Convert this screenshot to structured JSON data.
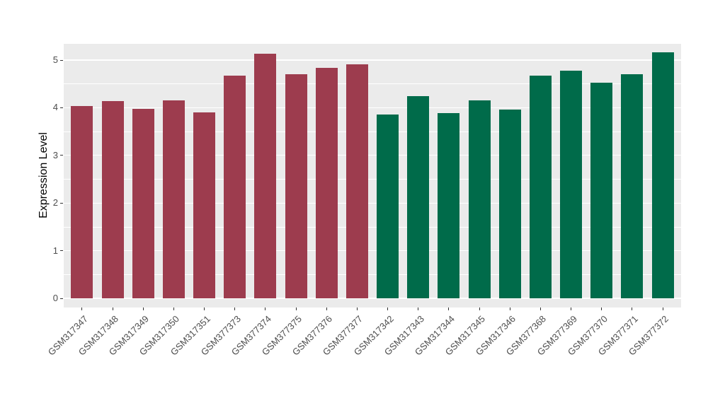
{
  "chart_data": {
    "type": "bar",
    "title": "",
    "xlabel": "",
    "ylabel": "Expression Level",
    "ylim": [
      0,
      5.35
    ],
    "yticks": [
      0,
      1,
      2,
      3,
      4,
      5
    ],
    "grid": "on",
    "legend": "none",
    "panel_bg": "#EBEBEB",
    "grid_color": "#FFFFFF",
    "group_colors": {
      "group1": "#9D3C4E",
      "group2": "#006B4A"
    },
    "categories": [
      "GSM317347",
      "GSM317348",
      "GSM317349",
      "GSM317350",
      "GSM317351",
      "GSM377373",
      "GSM377374",
      "GSM377375",
      "GSM377376",
      "GSM377377",
      "GSM317342",
      "GSM317343",
      "GSM317344",
      "GSM317345",
      "GSM317346",
      "GSM377368",
      "GSM377369",
      "GSM377370",
      "GSM377371",
      "GSM377372"
    ],
    "values": [
      4.04,
      4.14,
      3.98,
      4.16,
      3.9,
      4.67,
      5.13,
      4.71,
      4.84,
      4.91,
      3.86,
      4.24,
      3.89,
      4.15,
      3.96,
      4.67,
      4.78,
      4.53,
      4.71,
      5.16
    ],
    "bar_colors": [
      "#9D3C4E",
      "#9D3C4E",
      "#9D3C4E",
      "#9D3C4E",
      "#9D3C4E",
      "#9D3C4E",
      "#9D3C4E",
      "#9D3C4E",
      "#9D3C4E",
      "#9D3C4E",
      "#006B4A",
      "#006B4A",
      "#006B4A",
      "#006B4A",
      "#006B4A",
      "#006B4A",
      "#006B4A",
      "#006B4A",
      "#006B4A",
      "#006B4A"
    ]
  }
}
